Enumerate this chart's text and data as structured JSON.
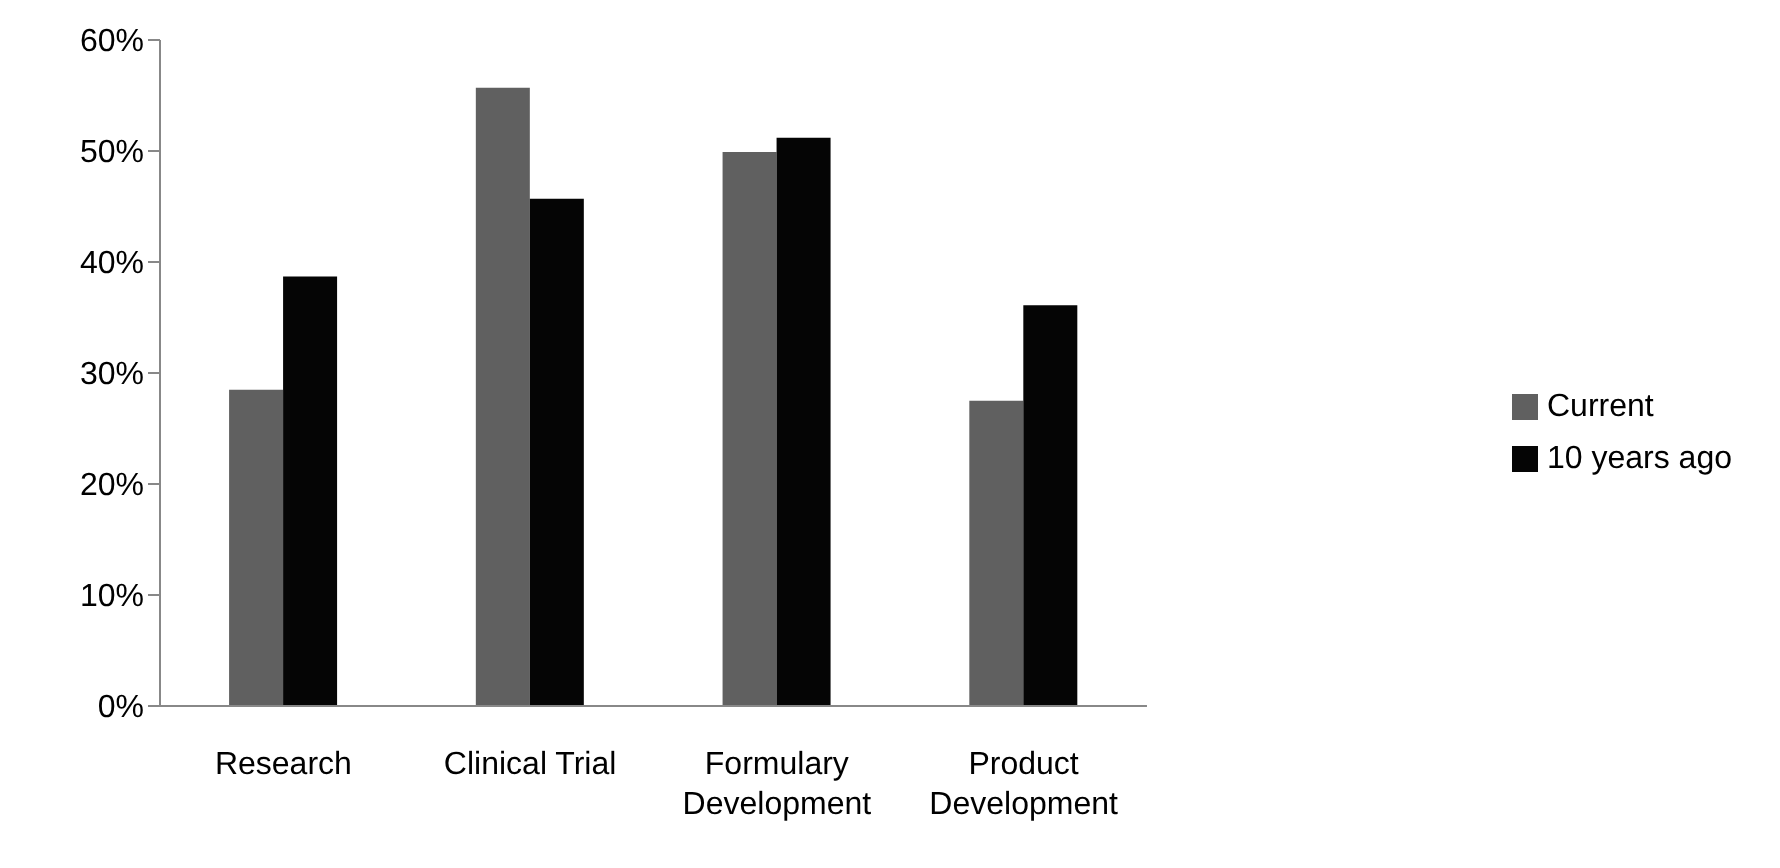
{
  "chart_data": {
    "type": "bar",
    "categories": [
      "Research",
      "Clinical Trial",
      "Formulary Development",
      "Product Development"
    ],
    "series": [
      {
        "name": "Current",
        "color": "#606060",
        "values": [
          28.5,
          55.7,
          49.9,
          27.5
        ]
      },
      {
        "name": "10 years ago",
        "color": "#050505",
        "values": [
          38.7,
          45.7,
          51.2,
          36.1
        ]
      }
    ],
    "ylim": [
      0,
      60
    ],
    "yticks": [
      {
        "value": 0,
        "label": "0%"
      },
      {
        "value": 10,
        "label": "10%"
      },
      {
        "value": 20,
        "label": "20%"
      },
      {
        "value": 30,
        "label": "30%"
      },
      {
        "value": 40,
        "label": "40%"
      },
      {
        "value": 50,
        "label": "50%"
      },
      {
        "value": 60,
        "label": "60%"
      }
    ],
    "grid": false,
    "legend": "right"
  }
}
